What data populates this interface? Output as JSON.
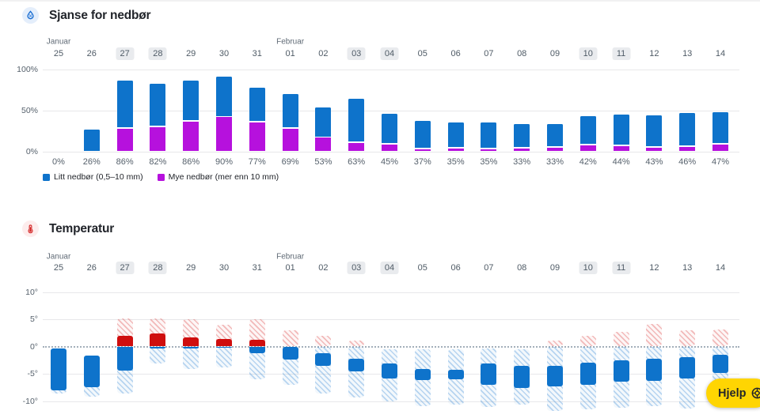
{
  "page": {
    "help_button": {
      "label": "Hjelp"
    }
  },
  "colors": {
    "blue_bar": "#0e73cb",
    "magenta_bar": "#b611dd",
    "red_bar": "#cf0e0e",
    "help_yellow": "#ffd502",
    "grid": "#e8e8ea",
    "axis_text": "#56616c",
    "day_highlight_bg": "#e9ebee"
  },
  "calendar": {
    "months": [
      {
        "label": "Januar",
        "index": 0
      },
      {
        "label": "Februar",
        "index": 7
      }
    ],
    "days": [
      "25",
      "26",
      "27",
      "28",
      "29",
      "30",
      "31",
      "01",
      "02",
      "03",
      "04",
      "05",
      "06",
      "07",
      "08",
      "09",
      "10",
      "11",
      "12",
      "13",
      "14"
    ],
    "highlighted_indices": [
      2,
      3,
      9,
      10,
      16,
      17
    ]
  },
  "precipitation": {
    "title": "Sjanse for nedbør",
    "icon": "droplet-percent-icon",
    "yticks": [
      "100%",
      "50%",
      "0%"
    ],
    "legend": [
      {
        "label": "Litt nedbør (0,5–10 mm)",
        "color": "#0e73cb"
      },
      {
        "label": "Mye nedbør (mer enn 10 mm)",
        "color": "#b611dd"
      }
    ]
  },
  "temperature": {
    "title": "Temperatur",
    "icon": "thermometer-icon",
    "yticks": [
      "10°",
      "5°",
      "0°",
      "-5°",
      "-10°"
    ]
  },
  "chart_data": [
    {
      "type": "bar",
      "stacked": true,
      "title": "Sjanse for nedbør",
      "categories": [
        "Jan 25",
        "Jan 26",
        "Jan 27",
        "Jan 28",
        "Jan 29",
        "Jan 30",
        "Jan 31",
        "Feb 01",
        "Feb 02",
        "Feb 03",
        "Feb 04",
        "Feb 05",
        "Feb 06",
        "Feb 07",
        "Feb 08",
        "Feb 09",
        "Feb 10",
        "Feb 11",
        "Feb 12",
        "Feb 13",
        "Feb 14"
      ],
      "series": [
        {
          "name": "Litt nedbør (0,5–10 mm)",
          "color": "#0e73cb",
          "values": [
            0,
            26,
            59,
            53,
            50,
            49,
            42,
            42,
            37,
            53,
            37,
            35,
            32,
            33,
            30,
            29,
            35,
            38,
            39,
            41,
            39
          ]
        },
        {
          "name": "Mye nedbør (mer enn 10 mm)",
          "color": "#b611dd",
          "values": [
            0,
            0,
            27,
            29,
            36,
            41,
            35,
            27,
            16,
            10,
            8,
            2,
            3,
            2,
            3,
            4,
            7,
            6,
            4,
            5,
            8
          ]
        }
      ],
      "total_labels": [
        "0%",
        "26%",
        "86%",
        "82%",
        "86%",
        "90%",
        "77%",
        "69%",
        "53%",
        "63%",
        "45%",
        "37%",
        "35%",
        "35%",
        "33%",
        "33%",
        "42%",
        "44%",
        "43%",
        "46%",
        "47%"
      ],
      "ylim": [
        0,
        100
      ],
      "yticks": [
        "0%",
        "50%",
        "100%"
      ],
      "legend_position": "bottom-left",
      "grid": true
    },
    {
      "type": "bar",
      "title": "Temperatur",
      "categories": [
        "Jan 25",
        "Jan 26",
        "Jan 27",
        "Jan 28",
        "Jan 29",
        "Jan 30",
        "Jan 31",
        "Feb 01",
        "Feb 02",
        "Feb 03",
        "Feb 04",
        "Feb 05",
        "Feb 06",
        "Feb 07",
        "Feb 08",
        "Feb 09",
        "Feb 10",
        "Feb 11",
        "Feb 12",
        "Feb 13",
        "Feb 14"
      ],
      "series": [
        {
          "name": "max_expected_temp_c",
          "values": [
            -0.4,
            -1.6,
            2.0,
            2.4,
            1.7,
            1.4,
            1.2,
            -0.1,
            -1.3,
            -2.2,
            -3.1,
            -4.1,
            -4.3,
            -3.1,
            -3.5,
            -3.5,
            -3.0,
            -2.5,
            -2.2,
            -2.0,
            -1.5
          ]
        },
        {
          "name": "min_expected_temp_c",
          "values": [
            -8.0,
            -7.4,
            -4.4,
            -0.4,
            -0.3,
            -0.2,
            -1.3,
            -2.4,
            -3.6,
            -4.5,
            -5.8,
            -6.2,
            -6.0,
            -7.1,
            -7.6,
            -7.3,
            -7.0,
            -6.5,
            -6.3,
            -5.9,
            -4.8
          ]
        },
        {
          "name": "upper_uncertainty_c",
          "values": [
            -0.4,
            -1.6,
            5.2,
            5.2,
            5.0,
            4.0,
            5.0,
            3.0,
            1.9,
            1.1,
            -0.5,
            -0.5,
            -0.5,
            -0.4,
            -0.5,
            1.1,
            2.0,
            2.7,
            4.1,
            3.0,
            3.1
          ]
        },
        {
          "name": "lower_uncertainty_c",
          "values": [
            -8.6,
            -9.2,
            -8.6,
            -3.1,
            -4.1,
            -3.8,
            -6.0,
            -7.1,
            -8.6,
            -9.4,
            -10.1,
            -11.0,
            -10.7,
            -11.1,
            -10.7,
            -11.8,
            -11.5,
            -11.3,
            -11.0,
            -11.4,
            -10.5
          ]
        }
      ],
      "ylim": [
        -10,
        10
      ],
      "yticks": [
        "-10°",
        "-5°",
        "0°",
        "5°",
        "10°"
      ],
      "zero_line": "dotted",
      "grid": true
    }
  ]
}
